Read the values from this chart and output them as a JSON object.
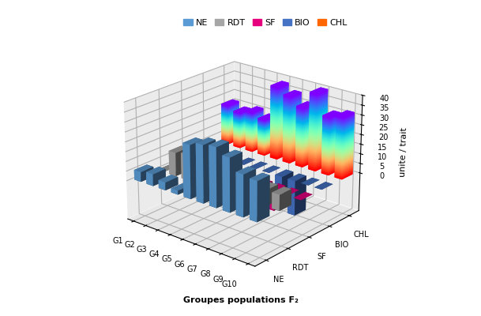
{
  "groups": [
    "G1",
    "G2",
    "G3",
    "G4",
    "G5",
    "G6",
    "G7",
    "G8",
    "G9",
    "G10"
  ],
  "traits": [
    "NE",
    "RDT",
    "SF",
    "BIO",
    "CHL"
  ],
  "values": {
    "NE": [
      5,
      6,
      4,
      2,
      27,
      29,
      30,
      27,
      21,
      20
    ],
    "RDT": [
      0,
      12,
      13,
      11,
      11,
      4,
      8,
      1,
      8,
      8
    ],
    "SF": [
      0,
      0,
      0,
      0,
      0,
      0,
      -5,
      -10,
      0,
      0
    ],
    "BIO": [
      0,
      0,
      0,
      0,
      0,
      0,
      -12,
      -18,
      0,
      0
    ],
    "CHL": [
      21,
      19,
      21,
      19,
      38,
      35,
      31,
      40,
      30,
      32
    ]
  },
  "solid_colors": {
    "NE": "#5B9BD5",
    "RDT": "#A6A6A6",
    "SF": "#E6007E",
    "BIO": "#4472C4"
  },
  "ylabel": "unite / trait",
  "xlabel": "Groupes populations F₂",
  "zlim": [
    0,
    40
  ],
  "zticks": [
    0,
    5,
    10,
    15,
    20,
    25,
    30,
    35,
    40
  ],
  "legend_labels": [
    "NE",
    "RDT",
    "SF",
    "BIO",
    "CHL"
  ],
  "legend_colors": [
    "#5B9BD5",
    "#A6A6A6",
    "#E6007E",
    "#4472C4",
    "#FF6600"
  ],
  "elev": 22,
  "azim": -50
}
